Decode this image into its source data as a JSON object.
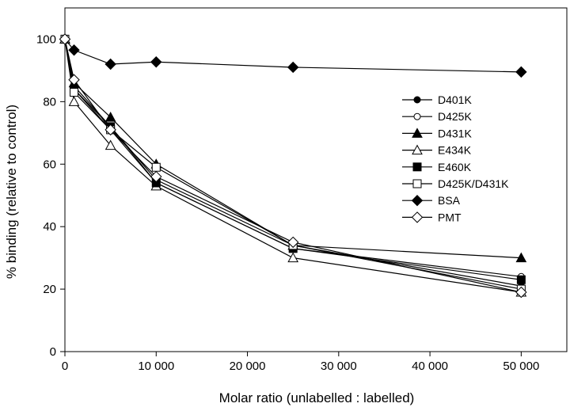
{
  "chart_data": {
    "type": "line",
    "title": "",
    "xlabel": "Molar ratio (unlabelled : labelled)",
    "ylabel": "% binding (relative to control)",
    "xlim": [
      0,
      55000
    ],
    "ylim": [
      0,
      110
    ],
    "x_ticks": [
      0,
      10000,
      20000,
      30000,
      40000,
      50000
    ],
    "x_tick_labels": [
      "0",
      "10 000",
      "20 000",
      "30 000",
      "40 000",
      "50 000"
    ],
    "y_ticks": [
      0,
      20,
      40,
      60,
      80,
      100
    ],
    "y_tick_labels": [
      "0",
      "20",
      "40",
      "60",
      "80",
      "100"
    ],
    "grid": false,
    "legend_position": "right",
    "x": [
      0,
      1000,
      5000,
      10000,
      25000,
      50000
    ],
    "series": [
      {
        "name": "D401K",
        "marker": "circle",
        "fill": "#000000",
        "values": [
          100,
          85,
          72,
          55,
          34,
          21
        ]
      },
      {
        "name": "D425K",
        "marker": "circle",
        "fill": "#ffffff",
        "values": [
          100,
          84,
          71,
          54,
          33,
          24
        ]
      },
      {
        "name": "D431K",
        "marker": "triangle",
        "fill": "#000000",
        "values": [
          100,
          86,
          75,
          60,
          34,
          30
        ]
      },
      {
        "name": "E434K",
        "marker": "triangle",
        "fill": "#ffffff",
        "values": [
          100,
          80,
          66,
          53,
          30,
          19
        ]
      },
      {
        "name": "E460K",
        "marker": "square",
        "fill": "#000000",
        "values": [
          100,
          84,
          72,
          54,
          33,
          23
        ]
      },
      {
        "name": "D425K/D431K",
        "marker": "square",
        "fill": "#ffffff",
        "values": [
          100,
          83,
          71,
          59,
          34,
          20
        ]
      },
      {
        "name": "BSA",
        "marker": "diamond",
        "fill": "#000000",
        "values": [
          100,
          96.5,
          92,
          92.7,
          91,
          89.5
        ]
      },
      {
        "name": "PMT",
        "marker": "diamond",
        "fill": "#ffffff",
        "values": [
          100,
          87,
          71,
          56,
          35,
          19
        ]
      }
    ]
  }
}
